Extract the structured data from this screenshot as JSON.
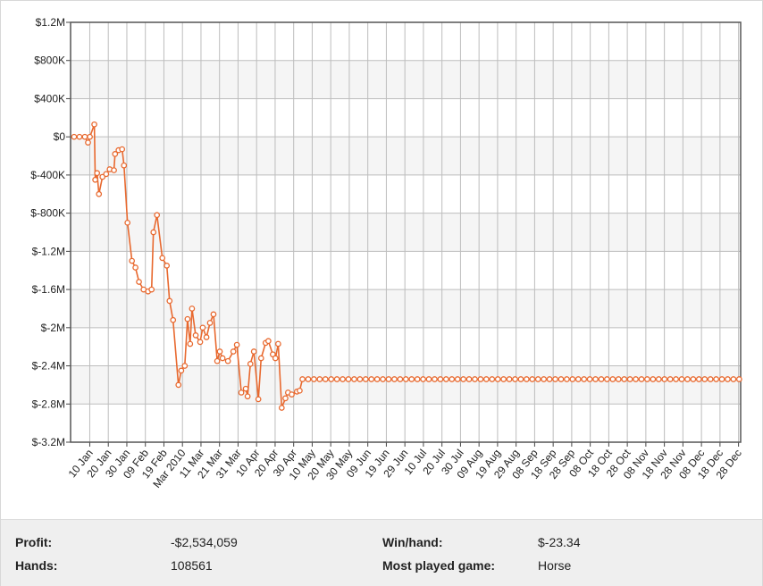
{
  "chart_data": {
    "type": "line",
    "title": "",
    "xlabel": "",
    "ylabel": "",
    "ylim": [
      -3200000,
      1200000
    ],
    "y_ticks": [
      1200000,
      800000,
      400000,
      0,
      -400000,
      -800000,
      -1200000,
      -1600000,
      -2000000,
      -2400000,
      -2800000,
      -3200000
    ],
    "y_tick_labels": [
      "$1.2M",
      "$800K",
      "$400K",
      "$0",
      "$-400K",
      "$-800K",
      "$-1.2M",
      "$-1.6M",
      "$-2M",
      "$-2.4M",
      "$-2.8M",
      "$-3.2M"
    ],
    "x_tick_labels": [
      "10 Jan",
      "20 Jan",
      "30 Jan",
      "09 Feb",
      "19 Feb",
      "Mar 2010",
      "11 Mar",
      "21 Mar",
      "31 Mar",
      "10 Apr",
      "20 Apr",
      "30 Apr",
      "10 May",
      "20 May",
      "30 May",
      "09 Jun",
      "19 Jun",
      "29 Jun",
      "10 Jul",
      "20 Jul",
      "30 Jul",
      "09 Aug",
      "19 Aug",
      "29 Aug",
      "08 Sep",
      "18 Sep",
      "28 Sep",
      "08 Oct",
      "18 Oct",
      "28 Oct",
      "08 Nov",
      "18 Nov",
      "28 Nov",
      "08 Dec",
      "18 Dec",
      "28 Dec"
    ],
    "x_tick_positions": [
      0.85,
      10.85,
      20.85,
      30.85,
      40.85,
      50.85,
      60.85,
      70.85,
      80.85,
      90.85,
      100.85,
      110.85,
      120.85,
      130.85,
      140.85,
      150.85,
      160.85,
      170.85,
      180.85,
      190.85,
      200.85,
      210.85,
      220.85,
      230.85,
      240.85,
      250.85,
      260.85,
      270.85,
      280.85,
      290.85,
      300.85,
      310.85,
      320.85,
      330.85,
      340.85,
      350.85
    ],
    "xlim": [
      -9.5,
      352
    ],
    "grid": true,
    "legend": "none",
    "line_color": "#e8692f",
    "series": [
      {
        "values": [
          [
            -7.6,
            0
          ],
          [
            -4.7,
            0
          ],
          [
            -1.8,
            0
          ],
          [
            -0.1,
            -60000
          ],
          [
            0.9,
            0
          ],
          [
            3.3,
            130000
          ],
          [
            3.8,
            -450000
          ],
          [
            4.8,
            -380000
          ],
          [
            5.8,
            -600000
          ],
          [
            7.7,
            -420000
          ],
          [
            9.7,
            -390000
          ],
          [
            11.6,
            -340000
          ],
          [
            13.9,
            -350000
          ],
          [
            14.5,
            -180000
          ],
          [
            16.4,
            -140000
          ],
          [
            18.3,
            -130000
          ],
          [
            19.3,
            -300000
          ],
          [
            21.2,
            -900000
          ],
          [
            23.6,
            -1300000
          ],
          [
            25.5,
            -1370000
          ],
          [
            27.4,
            -1520000
          ],
          [
            29.9,
            -1600000
          ],
          [
            32.3,
            -1620000
          ],
          [
            34.2,
            -1600000
          ],
          [
            35.2,
            -1000000
          ],
          [
            37.1,
            -820000
          ],
          [
            40.0,
            -1270000
          ],
          [
            42.4,
            -1350000
          ],
          [
            43.9,
            -1720000
          ],
          [
            45.8,
            -1920000
          ],
          [
            48.7,
            -2600000
          ],
          [
            50.2,
            -2450000
          ],
          [
            52.1,
            -2400000
          ],
          [
            53.6,
            -1910000
          ],
          [
            55.0,
            -2170000
          ],
          [
            56.0,
            -1800000
          ],
          [
            58.0,
            -2080000
          ],
          [
            60.4,
            -2150000
          ],
          [
            61.8,
            -2000000
          ],
          [
            63.8,
            -2100000
          ],
          [
            65.7,
            -1950000
          ],
          [
            67.6,
            -1860000
          ],
          [
            69.6,
            -2350000
          ],
          [
            71.0,
            -2250000
          ],
          [
            72.5,
            -2320000
          ],
          [
            75.4,
            -2350000
          ],
          [
            78.3,
            -2250000
          ],
          [
            80.2,
            -2180000
          ],
          [
            82.6,
            -2680000
          ],
          [
            85.0,
            -2640000
          ],
          [
            86.0,
            -2720000
          ],
          [
            87.5,
            -2380000
          ],
          [
            89.4,
            -2250000
          ],
          [
            91.8,
            -2750000
          ],
          [
            93.3,
            -2320000
          ],
          [
            95.7,
            -2160000
          ],
          [
            97.2,
            -2140000
          ],
          [
            99.6,
            -2280000
          ],
          [
            101.0,
            -2320000
          ],
          [
            102.5,
            -2170000
          ],
          [
            104.4,
            -2840000
          ],
          [
            106.4,
            -2740000
          ],
          [
            107.8,
            -2680000
          ],
          [
            109.8,
            -2700000
          ],
          [
            112.6,
            -2670000
          ],
          [
            114.1,
            -2660000
          ],
          [
            115.6,
            -2540000
          ]
        ],
        "plateau": {
          "start": 115.6,
          "end": 352,
          "step": 3.1,
          "value": -2540000
        }
      }
    ]
  },
  "stats": {
    "profit_label": "Profit:",
    "profit_value": "-$2,534,059",
    "hands_label": "Hands:",
    "hands_value": "108561",
    "winhand_label": "Win/hand:",
    "winhand_value": "$-23.34",
    "game_label": "Most played game:",
    "game_value": "Horse"
  }
}
